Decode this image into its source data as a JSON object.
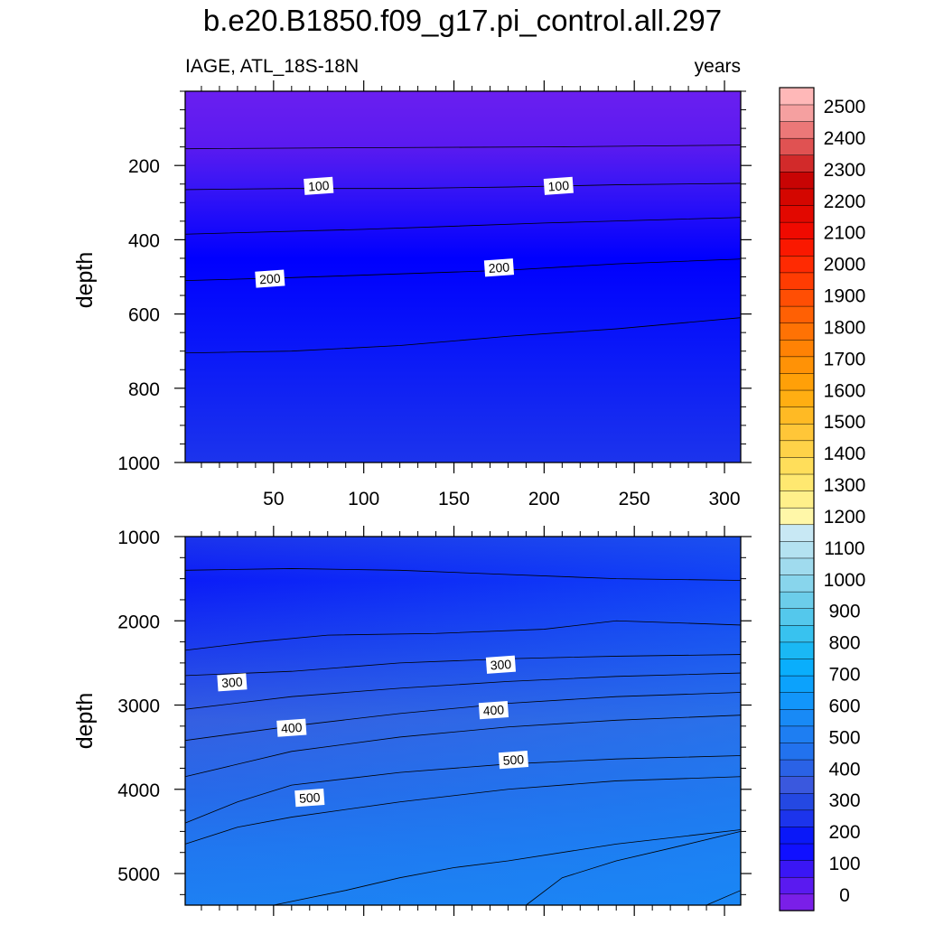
{
  "header": {
    "title": "b.e20.B1850.f09_g17.pi_control.all.297",
    "subtitle_left": "IAGE, ATL_18S-18N",
    "subtitle_right": "years"
  },
  "chart_data": [
    {
      "type": "heatmap",
      "panel": "upper",
      "xlabel": "",
      "ylabel": "depth",
      "xlim": [
        1,
        309
      ],
      "ylim": [
        1000,
        0
      ],
      "x_ticks": [
        50,
        100,
        150,
        200,
        250,
        300
      ],
      "y_ticks": [
        200,
        400,
        600,
        800,
        1000
      ],
      "contours": [
        {
          "level": 50,
          "x": [
            1,
            100,
            200,
            309
          ],
          "depth": [
            155,
            152,
            150,
            145
          ]
        },
        {
          "level": 100,
          "x": [
            1,
            60,
            120,
            180,
            240,
            309
          ],
          "depth": [
            265,
            262,
            262,
            258,
            252,
            248
          ]
        },
        {
          "level": 150,
          "x": [
            1,
            100,
            200,
            309
          ],
          "depth": [
            385,
            372,
            355,
            340
          ]
        },
        {
          "level": 200,
          "x": [
            1,
            60,
            120,
            180,
            240,
            309
          ],
          "depth": [
            510,
            502,
            492,
            482,
            465,
            452
          ]
        },
        {
          "level": 250,
          "x": [
            1,
            60,
            120,
            180,
            240,
            309
          ],
          "depth": [
            705,
            700,
            685,
            660,
            640,
            610
          ]
        }
      ],
      "labels": [
        {
          "text": "100",
          "x": 75,
          "depth": 255
        },
        {
          "text": "100",
          "x": 208,
          "depth": 255
        },
        {
          "text": "200",
          "x": 48,
          "depth": 505
        },
        {
          "text": "200",
          "x": 175,
          "depth": 475
        }
      ]
    },
    {
      "type": "heatmap",
      "panel": "lower",
      "xlabel": "",
      "ylabel": "depth",
      "xlim": [
        1,
        309
      ],
      "ylim": [
        5375,
        1000
      ],
      "y_ticks": [
        1000,
        2000,
        3000,
        4000,
        5000
      ],
      "contours": [
        {
          "level": 250,
          "x": [
            1,
            60,
            120,
            180,
            240,
            309
          ],
          "depth": [
            1400,
            1380,
            1400,
            1450,
            1500,
            1520
          ]
        },
        {
          "level": 200,
          "x": [
            1,
            40,
            80,
            140,
            200,
            240,
            309
          ],
          "depth": [
            2350,
            2250,
            2170,
            2150,
            2100,
            2000,
            2050
          ]
        },
        {
          "level": 250,
          "x": [
            1,
            60,
            120,
            180,
            240,
            309
          ],
          "depth": [
            2650,
            2600,
            2500,
            2450,
            2420,
            2400
          ]
        },
        {
          "level": 300,
          "x": [
            1,
            60,
            120,
            180,
            240,
            309
          ],
          "depth": [
            3050,
            2900,
            2800,
            2720,
            2660,
            2620
          ]
        },
        {
          "level": 350,
          "x": [
            1,
            60,
            120,
            180,
            240,
            309
          ],
          "depth": [
            3420,
            3250,
            3100,
            2980,
            2900,
            2850
          ]
        },
        {
          "level": 400,
          "x": [
            1,
            60,
            120,
            180,
            240,
            309
          ],
          "depth": [
            3850,
            3550,
            3380,
            3260,
            3180,
            3120
          ]
        },
        {
          "level": 450,
          "x": [
            1,
            30,
            60,
            120,
            180,
            240,
            309
          ],
          "depth": [
            4400,
            4150,
            3950,
            3800,
            3700,
            3640,
            3600
          ]
        },
        {
          "level": 500,
          "x": [
            1,
            30,
            60,
            120,
            180,
            240,
            309
          ],
          "depth": [
            4650,
            4450,
            4330,
            4150,
            4000,
            3900,
            3850
          ]
        },
        {
          "level": 550,
          "x": [
            50,
            90,
            120,
            150,
            180,
            240,
            309
          ],
          "depth": [
            5375,
            5200,
            5050,
            4930,
            4850,
            4650,
            4480
          ]
        },
        {
          "level": 600,
          "x": [
            190,
            210,
            240,
            270,
            309
          ],
          "depth": [
            5375,
            5050,
            4850,
            4700,
            4500
          ]
        },
        {
          "level": 650,
          "x": [
            290,
            309
          ],
          "depth": [
            5375,
            5200
          ]
        }
      ],
      "labels": [
        {
          "text": "300",
          "x": 27,
          "depth": 2730
        },
        {
          "text": "300",
          "x": 176,
          "depth": 2520
        },
        {
          "text": "400",
          "x": 60,
          "depth": 3270
        },
        {
          "text": "400",
          "x": 172,
          "depth": 3060
        },
        {
          "text": "500",
          "x": 70,
          "depth": 4100
        },
        {
          "text": "500",
          "x": 183,
          "depth": 3650
        }
      ]
    }
  ],
  "colorbar": {
    "labels": [
      "0",
      "100",
      "200",
      "300",
      "400",
      "500",
      "600",
      "700",
      "800",
      "900",
      "1000",
      "1100",
      "1200",
      "1300",
      "1400",
      "1500",
      "1600",
      "1700",
      "1800",
      "1900",
      "2000",
      "2100",
      "2200",
      "2300",
      "2400",
      "2500"
    ],
    "colors_bottom_to_top": [
      "#7a1fe8",
      "#5a1af0",
      "#3a16f5",
      "#1010ff",
      "#0a18f8",
      "#1c34ec",
      "#2448e2",
      "#3a58de",
      "#2a62e6",
      "#2272ee",
      "#1e7ef2",
      "#188af6",
      "#1296fa",
      "#0ca2fc",
      "#0aaefc",
      "#1ab8f4",
      "#38c2ef",
      "#54c8ec",
      "#6ccdea",
      "#88d5ec",
      "#a0dbee",
      "#b4e2f1",
      "#c8e8f4",
      "#fff7a8",
      "#fff08a",
      "#ffe870",
      "#ffde5a",
      "#ffd248",
      "#ffc638",
      "#ffba24",
      "#ffae12",
      "#ffa008",
      "#ff9206",
      "#ff8204",
      "#ff7204",
      "#ff6004",
      "#ff4e04",
      "#ff3c02",
      "#ff2a02",
      "#fa1800",
      "#f00a00",
      "#e20800",
      "#d40600",
      "#c80404",
      "#d22a2a",
      "#e05252",
      "#ec7878",
      "#f5a0a0",
      "#ffb8b8"
    ]
  }
}
